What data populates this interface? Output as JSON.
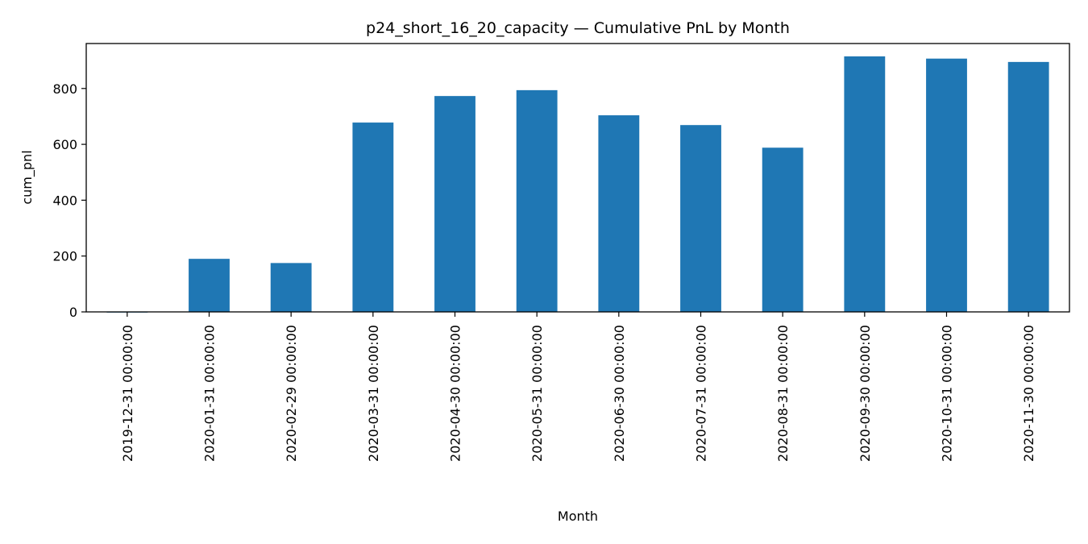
{
  "chart_data": {
    "type": "bar",
    "title": "p24_short_16_20_capacity — Cumulative PnL by Month",
    "xlabel": "Month",
    "ylabel": "cum_pnl",
    "categories": [
      "2019-12-31 00:00:00",
      "2020-01-31 00:00:00",
      "2020-02-29 00:00:00",
      "2020-03-31 00:00:00",
      "2020-04-30 00:00:00",
      "2020-05-31 00:00:00",
      "2020-06-30 00:00:00",
      "2020-07-31 00:00:00",
      "2020-08-31 00:00:00",
      "2020-09-30 00:00:00",
      "2020-10-31 00:00:00",
      "2020-11-30 00:00:00"
    ],
    "values": [
      0,
      190,
      175,
      678,
      773,
      794,
      704,
      669,
      588,
      915,
      907,
      895
    ],
    "yticks": [
      0,
      200,
      400,
      600,
      800
    ],
    "ylim": [
      0,
      961
    ],
    "grid": false,
    "legend": "none",
    "bar_color": "#1f77b4",
    "axis_color": "#000000"
  }
}
